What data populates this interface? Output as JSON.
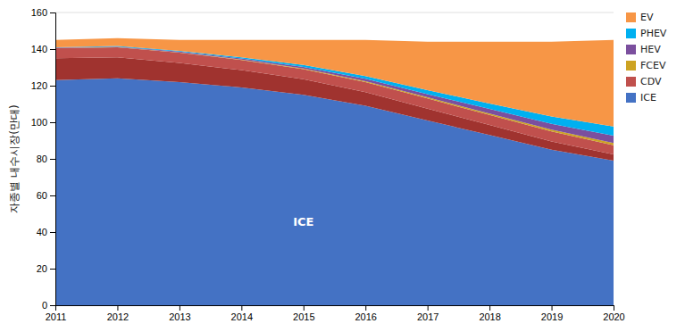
{
  "chart_data": {
    "type": "area",
    "stacked": true,
    "ylabel": "자종별 내수시장(만대)",
    "x": [
      2011,
      2012,
      2013,
      2014,
      2015,
      2016,
      2017,
      2018,
      2019,
      2020
    ],
    "series": [
      {
        "name": "ICE",
        "color": "#4472C4",
        "values": [
          123.0,
          124.0,
          122.0,
          119.0,
          115.0,
          109.0,
          101.0,
          93.0,
          85.0,
          79.0
        ]
      },
      {
        "color": "#A0332F",
        "values": [
          12.0,
          11.5,
          10.5,
          9.5,
          8.5,
          7.5,
          6.5,
          5.5,
          4.5,
          3.5
        ]
      },
      {
        "name": "CDV",
        "color": "#C0504D",
        "values": [
          5.5,
          5.5,
          5.5,
          5.5,
          5.5,
          5.5,
          5.5,
          5.5,
          5.5,
          5.0
        ]
      },
      {
        "name": "FCEV",
        "color": "#CDA323",
        "values": [
          0.1,
          0.1,
          0.2,
          0.3,
          0.4,
          0.5,
          0.6,
          0.8,
          1.0,
          1.2
        ]
      },
      {
        "name": "HEV",
        "color": "#7B4F9E",
        "values": [
          0.2,
          0.3,
          0.4,
          0.6,
          0.9,
          1.3,
          1.8,
          2.5,
          3.2,
          4.0
        ]
      },
      {
        "name": "PHEV",
        "color": "#00B0F0",
        "values": [
          0.2,
          0.3,
          0.4,
          0.6,
          1.0,
          1.5,
          2.2,
          3.0,
          4.0,
          5.0
        ]
      },
      {
        "name": "EV",
        "color": "#F79646",
        "values": [
          4.0,
          4.3,
          6.0,
          9.5,
          13.7,
          19.7,
          26.4,
          33.7,
          40.8,
          47.3
        ]
      }
    ],
    "xlim": [
      2011,
      2020
    ],
    "xticks": [
      2011,
      2012,
      2013,
      2014,
      2015,
      2016,
      2017,
      2018,
      2019,
      2020
    ],
    "ylim": [
      0,
      160
    ],
    "yticks": [
      0,
      20,
      40,
      60,
      80,
      100,
      120,
      140,
      160
    ],
    "grid": true,
    "legend": "right",
    "annotations": [
      {
        "text": "ICE",
        "x": 2015,
        "y": 45
      }
    ]
  }
}
